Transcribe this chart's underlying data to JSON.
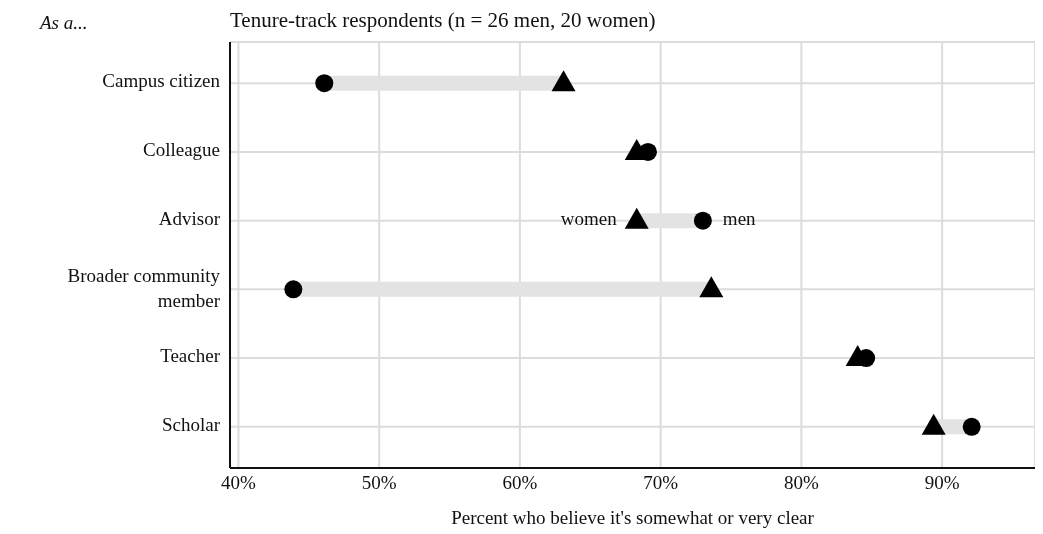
{
  "chart_data": {
    "type": "scatter",
    "title": "Tenure-track respondents (n = 26 men, 20 women)",
    "ylabel": "As a...",
    "xlabel": "Percent who believe it's somewhat or very clear",
    "categories": [
      "Campus citizen",
      "Colleague",
      "Advisor",
      "Broader community member",
      "Teacher",
      "Scholar"
    ],
    "series": [
      {
        "color": "#000000",
        "marker": "circle",
        "values": [
          46.1,
          69.1,
          73.0,
          43.9,
          84.6,
          92.1
        ]
      },
      {
        "color": "#000000",
        "marker": "triangle",
        "values": [
          63.1,
          68.3,
          68.3,
          73.6,
          84.0,
          89.4
        ]
      }
    ],
    "orientation": "horizontal",
    "xlim": [
      39.4,
      96.6
    ],
    "xticks": [
      {
        "value": 40,
        "label": "40%"
      },
      {
        "value": 50,
        "label": "50%"
      },
      {
        "value": 60,
        "label": "60%"
      },
      {
        "value": 70,
        "label": "70%"
      },
      {
        "value": 80,
        "label": "80%"
      },
      {
        "value": 90,
        "label": "90%"
      }
    ],
    "annotations": [
      {
        "text": "women",
        "x": 68.3,
        "y": "Advisor"
      },
      {
        "text": "men",
        "x": 73.0,
        "y": "Advisor"
      }
    ],
    "grid": true
  }
}
